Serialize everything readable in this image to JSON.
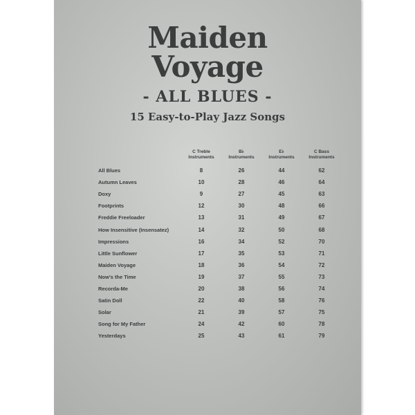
{
  "title_line1": "Maiden",
  "title_line2": "Voyage",
  "subtitle": "- ALL BLUES -",
  "tagline": "15 Easy-to-Play Jazz Songs",
  "table": {
    "headers": [
      [
        "C Treble",
        "Instruments"
      ],
      [
        "B♭",
        "Instruments"
      ],
      [
        "E♭",
        "Instruments"
      ],
      [
        "C Bass",
        "Instruments"
      ]
    ],
    "rows": [
      [
        "All Blues",
        "8",
        "26",
        "44",
        "62"
      ],
      [
        "Autumn Leaves",
        "10",
        "28",
        "46",
        "64"
      ],
      [
        "Doxy",
        "9",
        "27",
        "45",
        "63"
      ],
      [
        "Footprints",
        "12",
        "30",
        "48",
        "66"
      ],
      [
        "Freddie Freeloader",
        "13",
        "31",
        "49",
        "67"
      ],
      [
        "How Insensitive (Insensatez)",
        "14",
        "32",
        "50",
        "68"
      ],
      [
        "Impressions",
        "16",
        "34",
        "52",
        "70"
      ],
      [
        "Little Sunflower",
        "17",
        "35",
        "53",
        "71"
      ],
      [
        "Maiden Voyage",
        "18",
        "36",
        "54",
        "72"
      ],
      [
        "Now's the Time",
        "19",
        "37",
        "55",
        "73"
      ],
      [
        "Recorda-Me",
        "20",
        "38",
        "56",
        "74"
      ],
      [
        "Satin Doll",
        "22",
        "40",
        "58",
        "76"
      ],
      [
        "Solar",
        "21",
        "39",
        "57",
        "75"
      ],
      [
        "Song for My Father",
        "24",
        "42",
        "60",
        "78"
      ],
      [
        "Yesterdays",
        "25",
        "43",
        "61",
        "79"
      ]
    ]
  }
}
